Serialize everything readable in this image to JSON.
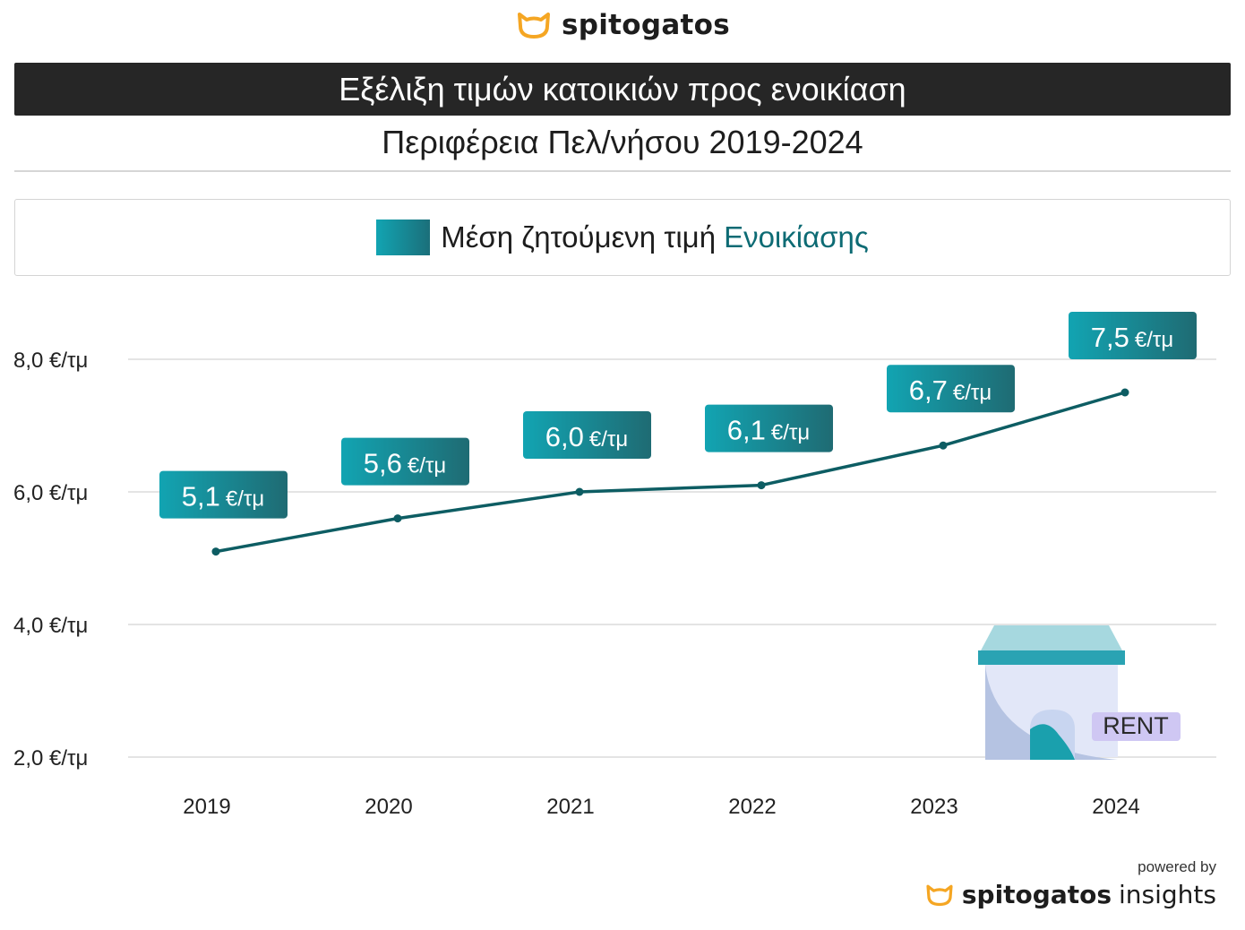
{
  "brand": {
    "name": "spitogatos",
    "logo_color": "#f5a623"
  },
  "title": "Εξέλιξη τιμών κατοικιών προς ενοικίαση",
  "subtitle": "Περιφέρεια Πελ/νήσου 2019-2024",
  "legend": {
    "label_main": "Μέση ζητούμενη τιμή",
    "label_accent": "Ενοικίασης"
  },
  "footer": {
    "powered_by": "powered by",
    "brand": "spitogatos",
    "suffix": "insights"
  },
  "illustration": {
    "badge": "RENT",
    "icon": "house-icon"
  },
  "colors": {
    "line": "#0d5d63",
    "label_from": "#12a4b2",
    "label_to": "#1f6b73",
    "grid": "#dcdcdc"
  },
  "chart_data": {
    "type": "line",
    "categories": [
      "2019",
      "2020",
      "2021",
      "2022",
      "2023",
      "2024"
    ],
    "series": [
      {
        "values": [
          5.1,
          5.6,
          6.0,
          6.1,
          6.7,
          7.5
        ]
      }
    ],
    "data_labels": [
      {
        "num": "5,1",
        "unit": "€/τμ"
      },
      {
        "num": "5,6",
        "unit": "€/τμ"
      },
      {
        "num": "6,0",
        "unit": "€/τμ"
      },
      {
        "num": "6,1",
        "unit": "€/τμ"
      },
      {
        "num": "6,7",
        "unit": "€/τμ"
      },
      {
        "num": "7,5",
        "unit": "€/τμ"
      }
    ],
    "y_ticks": [
      2,
      4,
      6,
      8
    ],
    "y_tick_labels": [
      "2,0 €/τμ",
      "4,0 €/τμ",
      "6,0 €/τμ",
      "8,0 €/τμ"
    ],
    "ylim": [
      2,
      8
    ],
    "grid": true
  }
}
